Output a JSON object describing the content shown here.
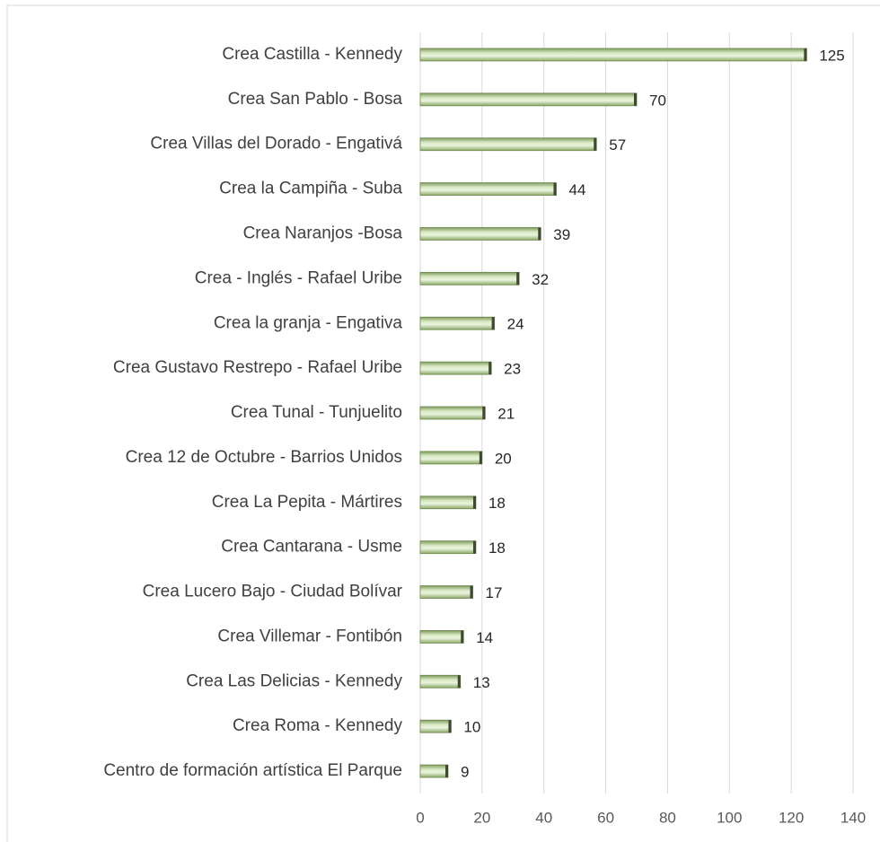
{
  "chart_data": {
    "type": "bar",
    "orientation": "horizontal",
    "categories": [
      "Crea Castilla - Kennedy",
      "Crea San Pablo - Bosa",
      "Crea Villas del Dorado - Engativá",
      "Crea la Campiña - Suba",
      "Crea Naranjos -Bosa",
      "Crea - Inglés - Rafael Uribe",
      "Crea la granja - Engativa",
      "Crea Gustavo Restrepo  - Rafael Uribe",
      "Crea Tunal - Tunjuelito",
      "Crea 12 de Octubre - Barrios Unidos",
      "Crea La Pepita - Mártires",
      "Crea Cantarana - Usme",
      "Crea Lucero Bajo - Ciudad Bolívar",
      "Crea Villemar - Fontibón",
      "Crea Las Delicias - Kennedy",
      "Crea Roma - Kennedy",
      "Centro de formación artística El Parque"
    ],
    "values": [
      125,
      70,
      57,
      44,
      39,
      32,
      24,
      23,
      21,
      20,
      18,
      18,
      17,
      14,
      13,
      10,
      9
    ],
    "color": "#9bbb59",
    "xlim": [
      0,
      140
    ],
    "xticks": [
      0,
      20,
      40,
      60,
      80,
      100,
      120,
      140
    ],
    "grid": true
  }
}
